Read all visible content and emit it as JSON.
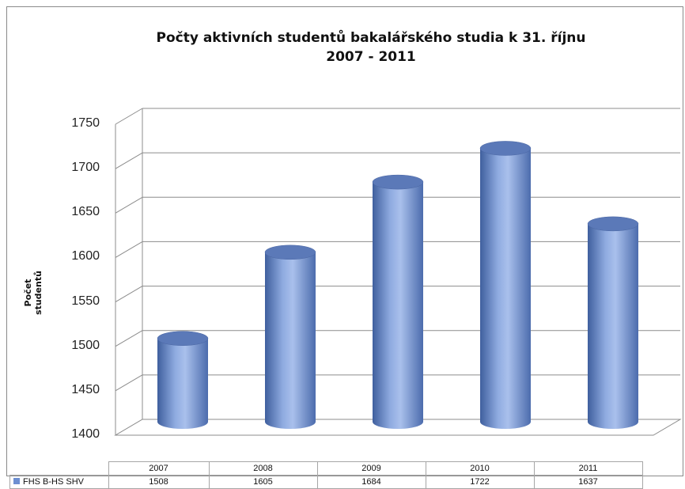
{
  "chart_data": {
    "type": "bar",
    "title": "Počty aktivních studentů bakalářského studia k 31. říjnu",
    "subtitle": "2007 - 2011",
    "ylabel": "Počet studentů",
    "xlabel": "",
    "categories": [
      "2007",
      "2008",
      "2009",
      "2010",
      "2011"
    ],
    "series": [
      {
        "name": "FHS B-HS SHV",
        "values": [
          1508,
          1605,
          1684,
          1722,
          1637
        ]
      }
    ],
    "ylim": [
      1400,
      1750
    ],
    "yticks": [
      "1400",
      "1450",
      "1500",
      "1550",
      "1600",
      "1650",
      "1700",
      "1750"
    ],
    "grid": true,
    "legend": "data table below chart",
    "bar_shape": "3d cylinder",
    "colors": {
      "bar": "#6d8fd1",
      "bar_top": "#5b79b8",
      "grid": "#8c8c8c"
    }
  }
}
